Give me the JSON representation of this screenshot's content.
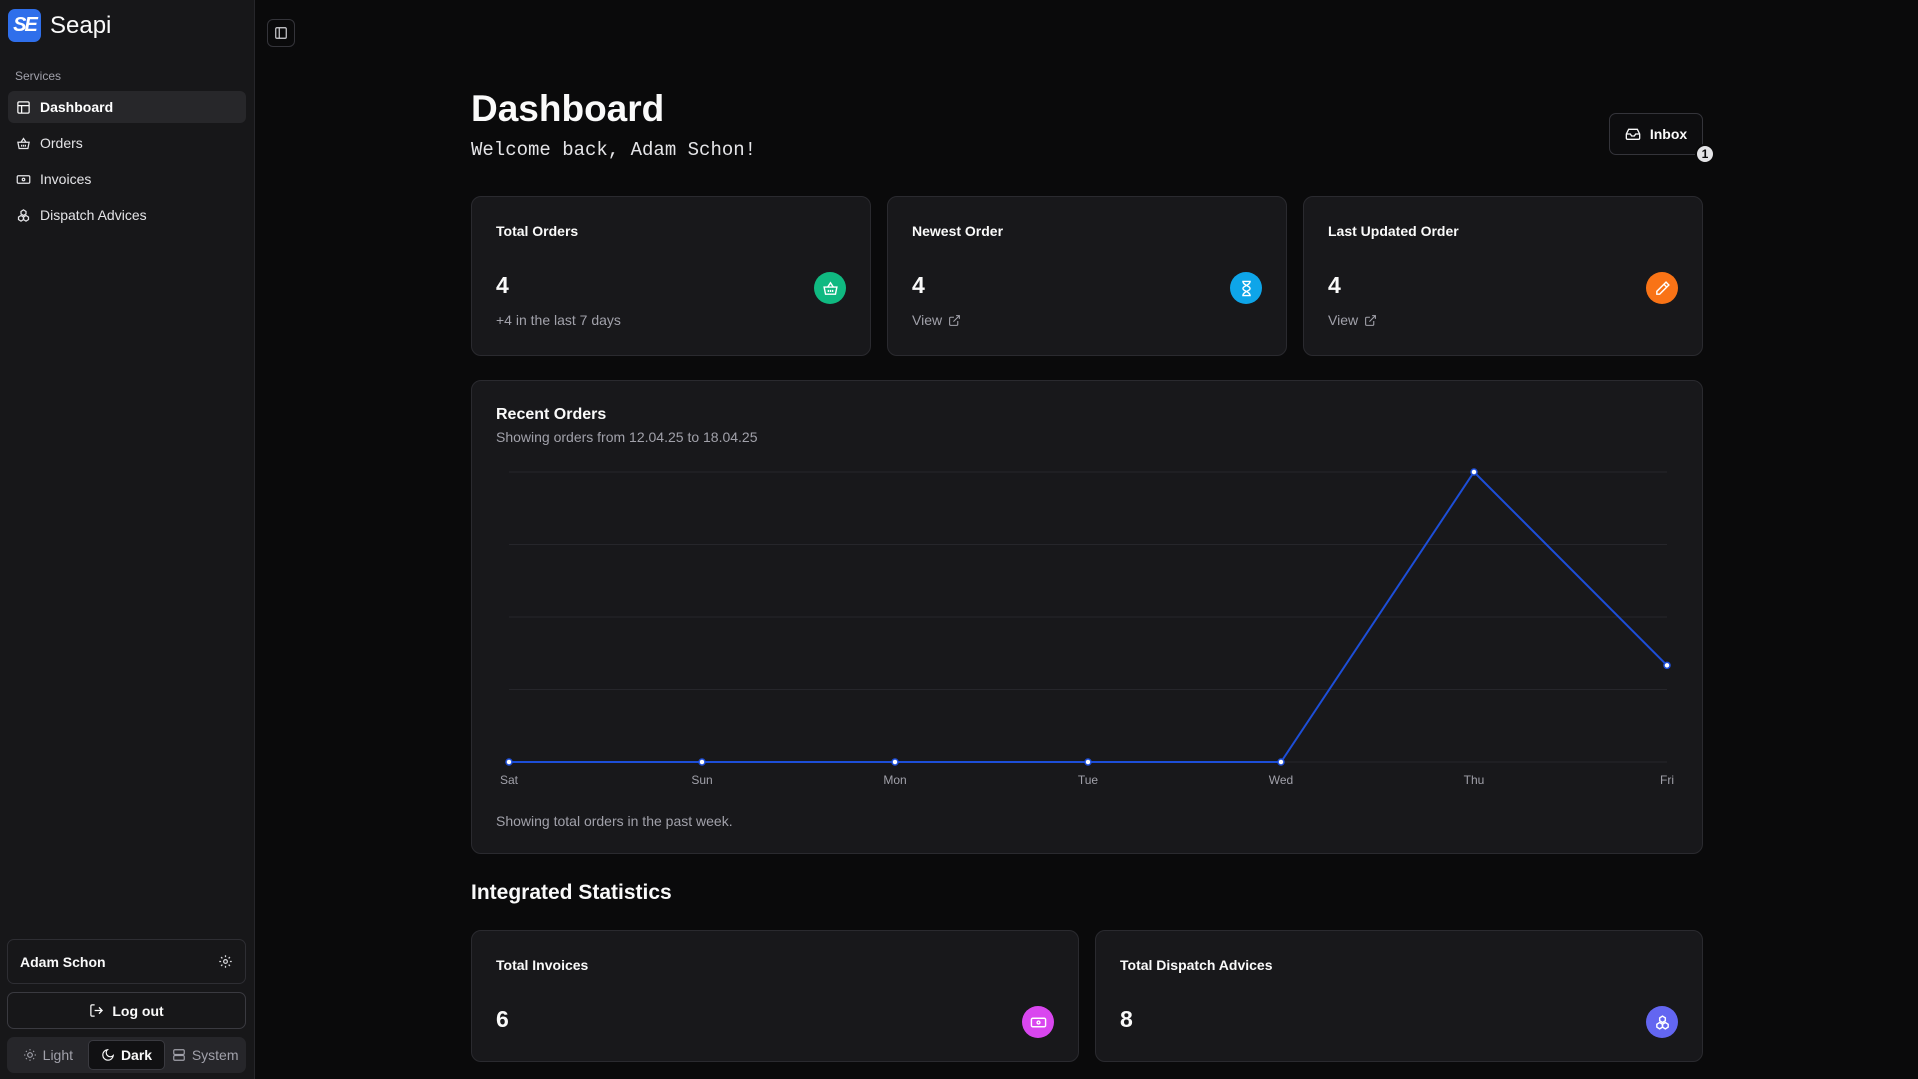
{
  "brand": {
    "logo_text": "SE",
    "name": "Seapi"
  },
  "sidebar": {
    "section_label": "Services",
    "items": [
      {
        "label": "Dashboard",
        "icon": "layout-dashboard-icon",
        "active": true
      },
      {
        "label": "Orders",
        "icon": "basket-icon",
        "active": false
      },
      {
        "label": "Invoices",
        "icon": "banknote-icon",
        "active": false
      },
      {
        "label": "Dispatch Advices",
        "icon": "boxes-icon",
        "active": false
      }
    ],
    "user": {
      "name": "Adam Schon"
    },
    "logout_label": "Log out",
    "theme": {
      "options": [
        "Light",
        "Dark",
        "System"
      ],
      "selected": "Dark"
    }
  },
  "header": {
    "title": "Dashboard",
    "welcome": "Welcome back, Adam Schon!",
    "inbox": {
      "label": "Inbox",
      "count": "1"
    }
  },
  "stats": [
    {
      "title": "Total Orders",
      "value": "4",
      "sub": "+4 in the last 7 days",
      "icon": "basket-icon",
      "color": "#10b981"
    },
    {
      "title": "Newest Order",
      "value": "4",
      "sub": "View",
      "icon": "hourglass-icon",
      "color": "#0ea5e9"
    },
    {
      "title": "Last Updated Order",
      "value": "4",
      "sub": "View",
      "icon": "pencil-icon",
      "color": "#f97316"
    }
  ],
  "recent_orders": {
    "title": "Recent Orders",
    "subtitle": "Showing orders from 12.04.25 to 18.04.25",
    "footer": "Showing total orders in the past week."
  },
  "chart_data": {
    "type": "line",
    "categories": [
      "Sat",
      "Sun",
      "Mon",
      "Tue",
      "Wed",
      "Thu",
      "Fri"
    ],
    "values": [
      0,
      0,
      0,
      0,
      0,
      3,
      1
    ],
    "ylim": [
      0,
      3
    ],
    "grid": true,
    "color": "#1d4ed8"
  },
  "integrated": {
    "heading": "Integrated Statistics",
    "cards": [
      {
        "title": "Total Invoices",
        "value": "6",
        "icon": "banknote-icon",
        "color": "#d946ef"
      },
      {
        "title": "Total Dispatch Advices",
        "value": "8",
        "icon": "boxes-icon",
        "color": "#6366f1"
      }
    ]
  }
}
